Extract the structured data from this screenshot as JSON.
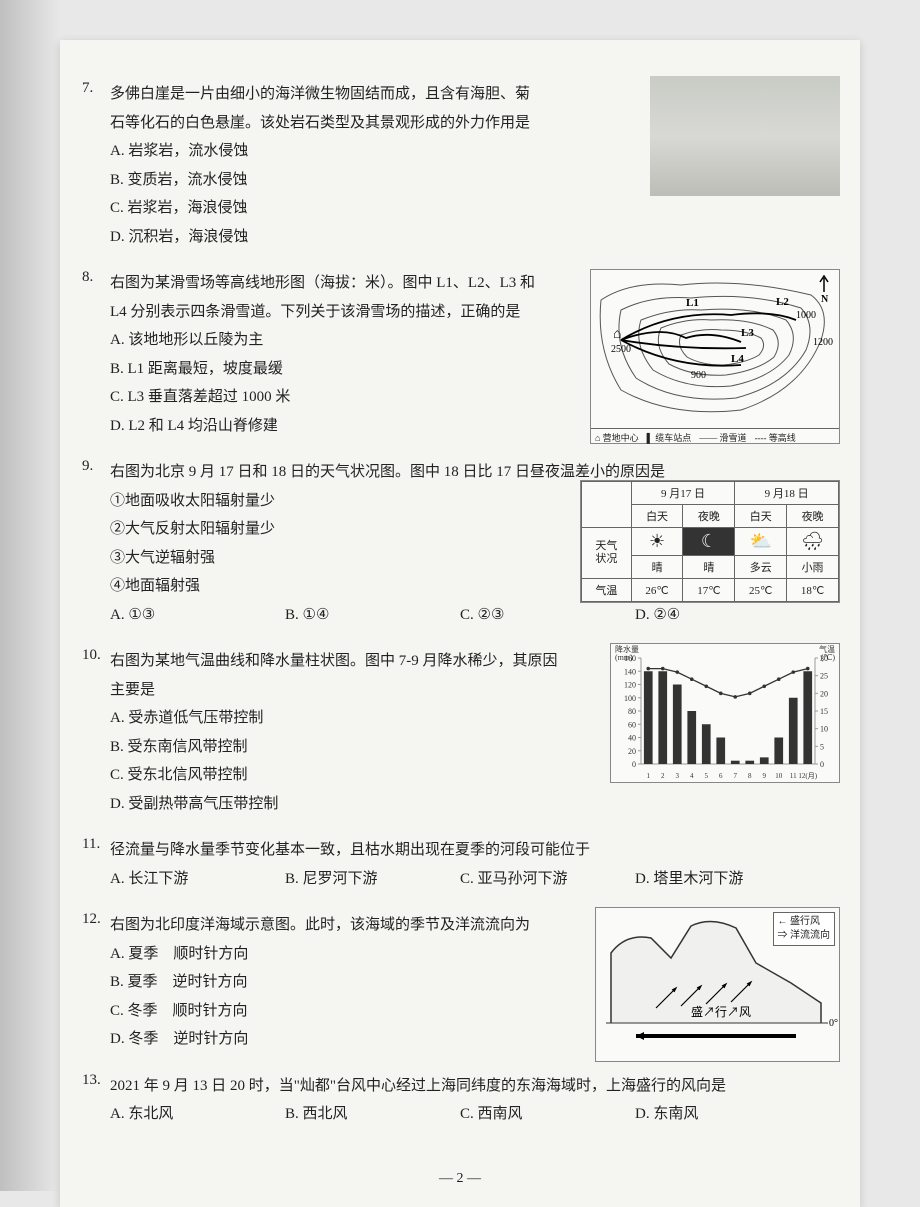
{
  "page_number": "— 2 —",
  "q7": {
    "num": "7.",
    "stem": "多佛白崖是一片由细小的海洋微生物固结而成，且含有海胆、菊石等化石的白色悬崖。该处岩石类型及其景观形成的外力作用是",
    "opts": {
      "A": "A. 岩浆岩，流水侵蚀",
      "B": "B. 变质岩，流水侵蚀",
      "C": "C. 岩浆岩，海浪侵蚀",
      "D": "D. 沉积岩，海浪侵蚀"
    }
  },
  "q8": {
    "num": "8.",
    "stem": "右图为某滑雪场等高线地形图（海拔：米）。图中 L1、L2、L3 和 L4 分别表示四条滑雪道。下列关于该滑雪场的描述，正确的是",
    "opts": {
      "A": "A. 该地地形以丘陵为主",
      "B": "B. L1 距离最短，坡度最缓",
      "C": "C. L3 垂直落差超过 1000 米",
      "D": "D. L2 和 L4 均沿山脊修建"
    },
    "fig": {
      "labels": {
        "L1": "L1",
        "L2": "L2",
        "L3": "L3",
        "L4": "L4",
        "h1": "2500",
        "h2": "900",
        "h3": "1000",
        "h4": "1200",
        "house": "⌂",
        "north_label": "N"
      },
      "legend": {
        "a": "⌂ 营地中心",
        "b": "▌ 缆车站点",
        "c": "—— 滑雪道",
        "d": "---- 等高线"
      }
    }
  },
  "q9": {
    "num": "9.",
    "stem": "右图为北京 9 月 17 日和 18 日的天气状况图。图中 18 日比 17 日昼夜温差小的原因是",
    "items": {
      "i1": "①地面吸收太阳辐射量少",
      "i2": "②大气反射太阳辐射量少",
      "i3": "③大气逆辐射强",
      "i4": "④地面辐射强"
    },
    "opts": {
      "A": "A. ①③",
      "B": "B. ①④",
      "C": "C. ②③",
      "D": "D. ②④"
    },
    "fig": {
      "header": {
        "d17": "9 月17 日",
        "d18": "9 月18 日"
      },
      "sub": {
        "bt": "白天",
        "yw": "夜晚"
      },
      "rows_label": {
        "tq": "天气",
        "zk": "状况",
        "qw": "气温"
      },
      "symbols": {
        "s1": "☀",
        "s2": "☾",
        "s3": "⛅",
        "s4": "🌧"
      },
      "desc": {
        "d1": "晴",
        "d2": "晴",
        "d3": "多云",
        "d4": "小雨"
      },
      "temp": {
        "t1": "26℃",
        "t2": "17℃",
        "t3": "25℃",
        "t4": "18℃"
      }
    }
  },
  "q10": {
    "num": "10.",
    "stem": "右图为某地气温曲线和降水量柱状图。图中 7-9 月降水稀少，其原因主要是",
    "opts": {
      "A": "A. 受赤道低气压带控制",
      "B": "B. 受东南信风带控制",
      "C": "C. 受东北信风带控制",
      "D": "D. 受副热带高气压带控制"
    },
    "chart": {
      "title_left": "降水量\\n(mm)",
      "title_right": "气温\\n(℃)",
      "y_left_max": 160,
      "y_left_step": 20,
      "y_right_max": 30,
      "y_right_step": 5,
      "x_labels": [
        "1",
        "2",
        "3",
        "4",
        "5",
        "6",
        "7",
        "8",
        "9",
        "10",
        "11",
        "12(月)"
      ],
      "precip": [
        140,
        140,
        120,
        80,
        60,
        40,
        5,
        5,
        10,
        40,
        100,
        140
      ],
      "temp_line": [
        27,
        27,
        26,
        24,
        22,
        20,
        19,
        20,
        22,
        24,
        26,
        27
      ],
      "bar_color": "#333333",
      "line_color": "#333333",
      "background": "#fafaf8",
      "grid_color": "#999999"
    }
  },
  "q11": {
    "num": "11.",
    "stem": "径流量与降水量季节变化基本一致，且枯水期出现在夏季的河段可能位于",
    "opts": {
      "A": "A. 长江下游",
      "B": "B. 尼罗河下游",
      "C": "C. 亚马孙河下游",
      "D": "D. 塔里木河下游"
    }
  },
  "q12": {
    "num": "12.",
    "stem": "右图为北印度洋海域示意图。此时，该海域的季节及洋流流向为",
    "opts": {
      "A": "A. 夏季　顺时针方向",
      "B": "B. 夏季　逆时针方向",
      "C": "C. 冬季　顺时针方向",
      "D": "D. 冬季　逆时针方向"
    },
    "fig": {
      "legend": {
        "a": "← 盛行风",
        "b": "⇒ 洋流流向"
      },
      "label": "盛↗行↗风",
      "eq": "0°"
    }
  },
  "q13": {
    "num": "13.",
    "stem": "2021 年 9 月 13 日 20 时，当\"灿都\"台风中心经过上海同纬度的东海海域时，上海盛行的风向是",
    "opts": {
      "A": "A. 东北风",
      "B": "B. 西北风",
      "C": "C. 西南风",
      "D": "D. 东南风"
    }
  }
}
